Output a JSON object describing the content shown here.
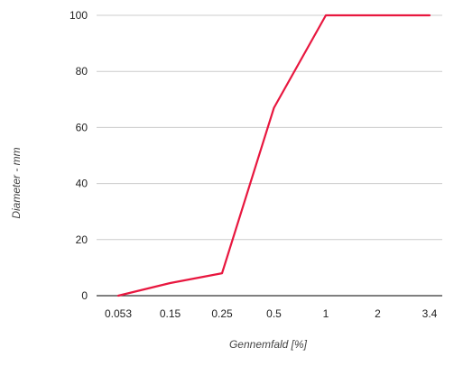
{
  "chart_data": {
    "type": "line",
    "title": "",
    "xlabel": "Gennemfald [%]",
    "ylabel": "Diameter - mm",
    "categories": [
      "0.053",
      "0.15",
      "0.25",
      "0.5",
      "1",
      "2",
      "3.4"
    ],
    "series": [
      {
        "values": [
          0,
          4.5,
          8,
          67,
          100,
          100,
          100
        ],
        "color": "#e8173f"
      }
    ],
    "ylim": [
      0,
      100
    ],
    "yticks": [
      "0",
      "20",
      "40",
      "60",
      "80",
      "100"
    ],
    "grid": true,
    "legend": "none"
  }
}
